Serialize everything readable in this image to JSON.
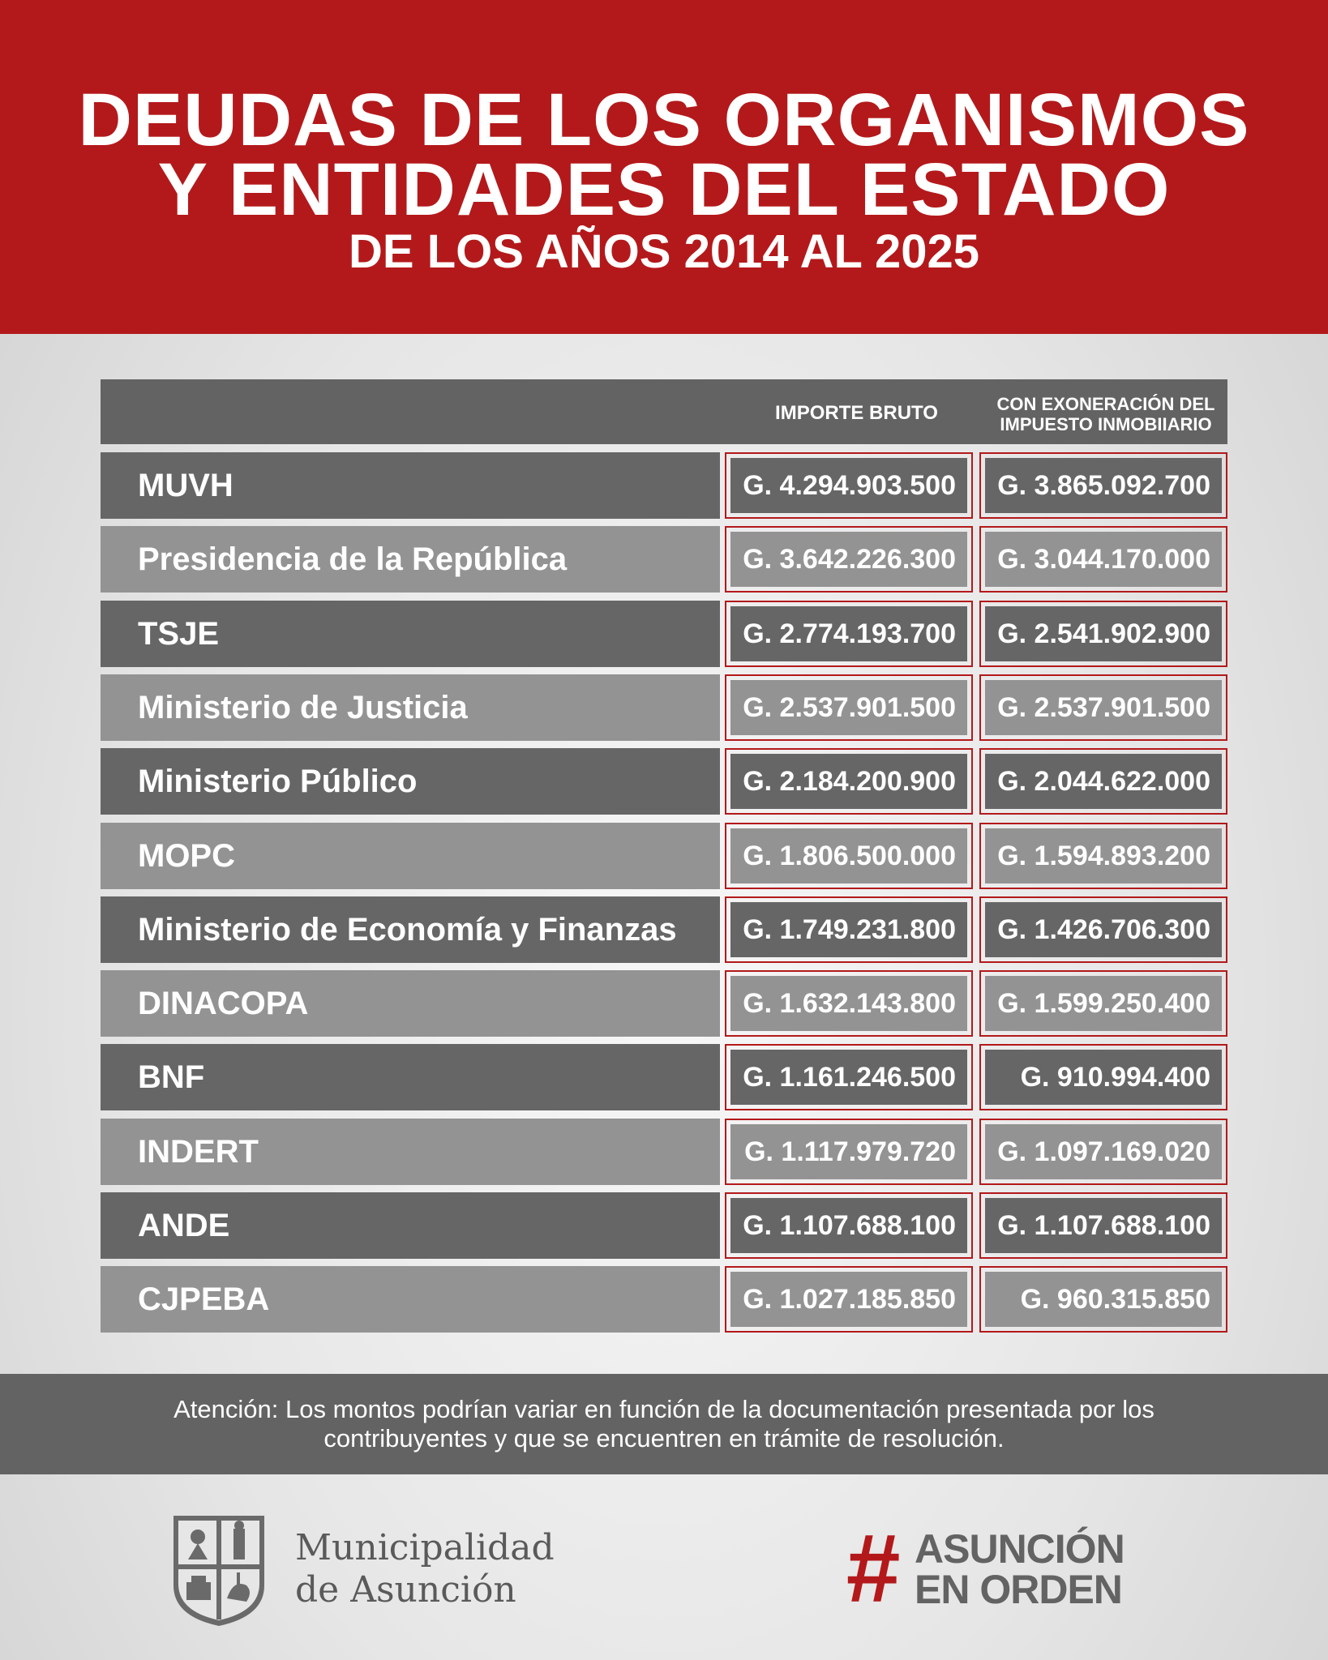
{
  "header": {
    "title_line1": "DEUDAS DE LOS ORGANISMOS",
    "title_line2": "Y ENTIDADES DEL ESTADO",
    "subtitle": "DE LOS AÑOS 2014 AL 2025"
  },
  "colors": {
    "brand_red": "#b3191b",
    "row_dark": "#666666",
    "row_light": "#939393"
  },
  "chart_data": {
    "type": "table",
    "title": "DEUDAS DE LOS ORGANISMOS Y ENTIDADES DEL ESTADO",
    "subtitle": "DE LOS AÑOS 2014 AL 2025",
    "columns": [
      "",
      "IMPORTE BRUTO",
      "CON EXONERACIÓN DEL IMPUESTO INMOBIIARIO"
    ],
    "col_header_bruto": "IMPORTE BRUTO",
    "col_header_exon_l1": "CON EXONERACIÓN DEL",
    "col_header_exon_l2": "IMPUESTO INMOBIIARIO",
    "rows": [
      {
        "name": "MUVH",
        "bruto": "G. 4.294.903.500",
        "exon": "G. 3.865.092.700"
      },
      {
        "name": "Presidencia de la República",
        "bruto": "G. 3.642.226.300",
        "exon": "G. 3.044.170.000"
      },
      {
        "name": "TSJE",
        "bruto": "G. 2.774.193.700",
        "exon": "G. 2.541.902.900"
      },
      {
        "name": "Ministerio de Justicia",
        "bruto": "G. 2.537.901.500",
        "exon": "G. 2.537.901.500"
      },
      {
        "name": "Ministerio Público",
        "bruto": "G. 2.184.200.900",
        "exon": "G. 2.044.622.000"
      },
      {
        "name": "MOPC",
        "bruto": "G. 1.806.500.000",
        "exon": "G. 1.594.893.200"
      },
      {
        "name": "Ministerio de Economía y Finanzas",
        "bruto": "G. 1.749.231.800",
        "exon": "G. 1.426.706.300"
      },
      {
        "name": "DINACOPA",
        "bruto": "G. 1.632.143.800",
        "exon": "G. 1.599.250.400"
      },
      {
        "name": "BNF",
        "bruto": "G. 1.161.246.500",
        "exon": "G. 910.994.400"
      },
      {
        "name": "INDERT",
        "bruto": "G. 1.117.979.720",
        "exon": "G. 1.097.169.020"
      },
      {
        "name": "ANDE",
        "bruto": "G. 1.107.688.100",
        "exon": "G. 1.107.688.100"
      },
      {
        "name": "CJPEBA",
        "bruto": "G. 1.027.185.850",
        "exon": "G. 960.315.850"
      }
    ]
  },
  "notice": {
    "line1": "Atención: Los montos podrían variar en función de la documentación presentada por los",
    "line2": "contribuyentes y que se encuentren en trámite de resolución."
  },
  "footer": {
    "logo_icon": "city-coat-of-arms-icon",
    "muni_line1": "Municipalidad",
    "muni_line2": "de Asunción",
    "hashtag_symbol": "#",
    "hashtag_line1": "ASUNCIÓN",
    "hashtag_line2": "EN ORDEN"
  }
}
